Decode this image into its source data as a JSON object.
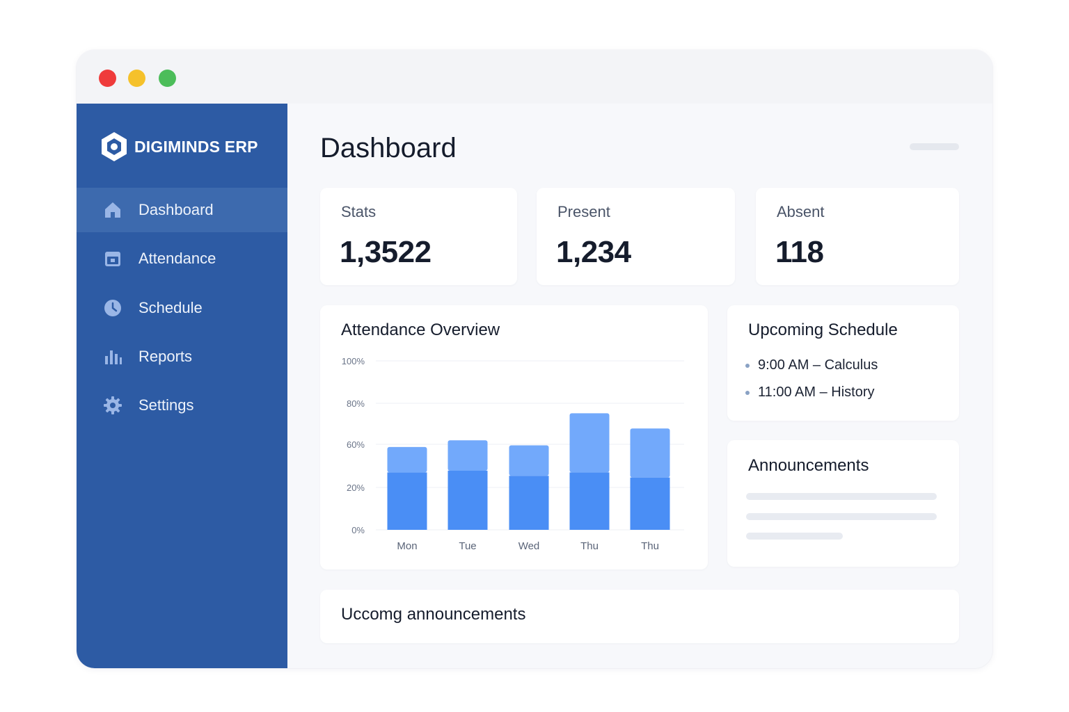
{
  "app": {
    "brand": "DIGIMINDS ERP"
  },
  "window": {
    "traffic_lights": [
      "#ef3b3b",
      "#f5c12b",
      "#4cbd5a"
    ]
  },
  "sidebar": {
    "background": "#2d5ba4",
    "items": [
      {
        "label": "Dashboard",
        "icon": "home-icon",
        "active": true
      },
      {
        "label": "Attendance",
        "icon": "calendar-icon",
        "active": false
      },
      {
        "label": "Schedule",
        "icon": "clock-icon",
        "active": false
      },
      {
        "label": "Reports",
        "icon": "bar-chart-icon",
        "active": false
      },
      {
        "label": "Settings",
        "icon": "gear-icon",
        "active": false
      }
    ]
  },
  "main": {
    "title": "Dashboard",
    "stats": [
      {
        "label": "Stats",
        "value": "1,3522"
      },
      {
        "label": "Present",
        "value": "1,234"
      },
      {
        "label": "Absent",
        "value": "118"
      }
    ],
    "attendance_overview": {
      "title": "Attendance Overview"
    },
    "upcoming_schedule": {
      "title": "Upcoming Schedule",
      "items": [
        "9:00 AM –  Calculus",
        "11:00 AM – History"
      ]
    },
    "announcements": {
      "title": "Announcements"
    },
    "upcoming_announcements": {
      "title": "Uccomg announcements"
    }
  },
  "chart_data": {
    "type": "bar",
    "stacked": true,
    "title": "Attendance Overview",
    "categories": [
      "Mon",
      "Tue",
      "Wed",
      "Thu",
      "Thu"
    ],
    "y_tick_labels": [
      "0%",
      "20%",
      "60%",
      "80%",
      "100%"
    ],
    "ylim": [
      0,
      100
    ],
    "grid": true,
    "series": [
      {
        "values": [
          34,
          35,
          32,
          34,
          31
        ],
        "color": "#4a8ef5"
      },
      {
        "values": [
          15,
          18,
          18,
          35,
          29
        ],
        "color": "#72a9fb"
      }
    ]
  }
}
